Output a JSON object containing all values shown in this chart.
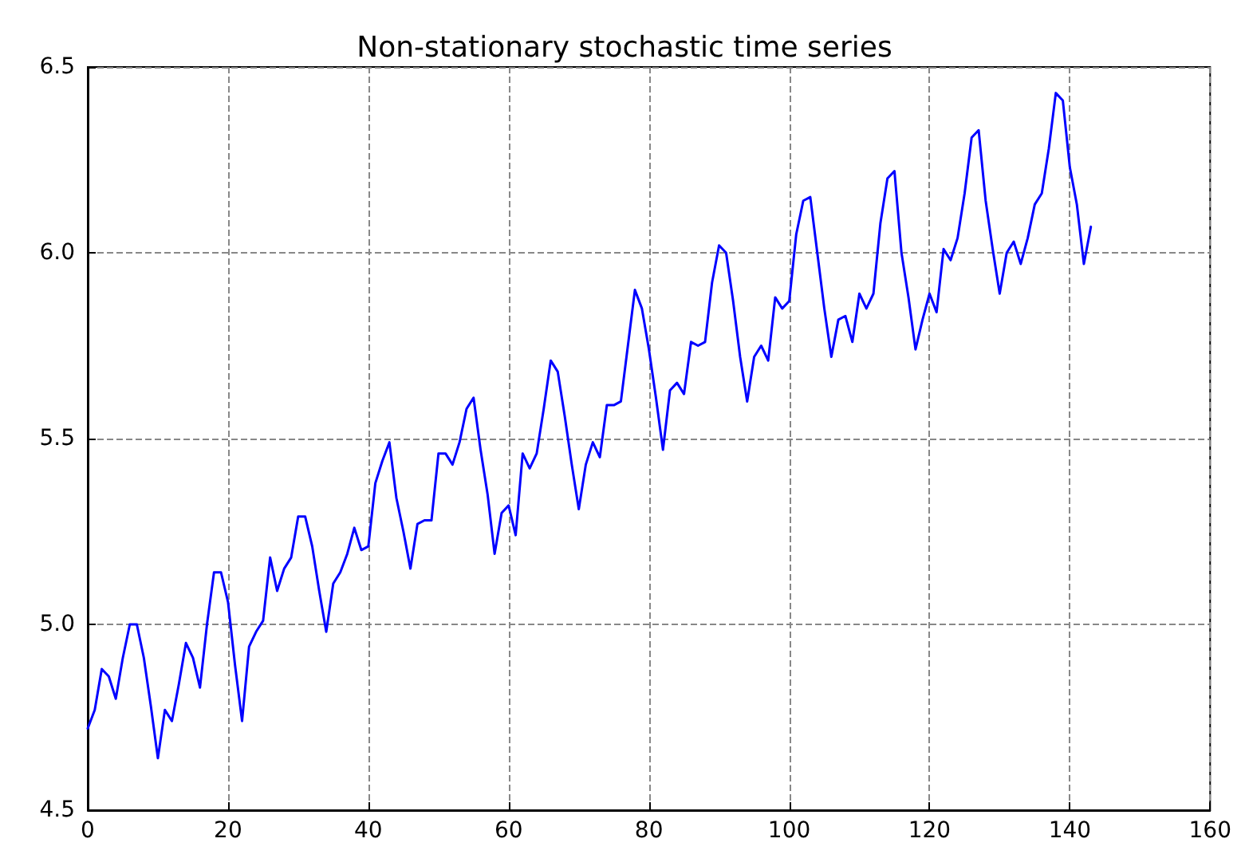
{
  "chart_data": {
    "type": "line",
    "title": "Non-stationary stochastic time series",
    "x": [
      0,
      1,
      2,
      3,
      4,
      5,
      6,
      7,
      8,
      9,
      10,
      11,
      12,
      13,
      14,
      15,
      16,
      17,
      18,
      19,
      20,
      21,
      22,
      23,
      24,
      25,
      26,
      27,
      28,
      29,
      30,
      31,
      32,
      33,
      34,
      35,
      36,
      37,
      38,
      39,
      40,
      41,
      42,
      43,
      44,
      45,
      46,
      47,
      48,
      49,
      50,
      51,
      52,
      53,
      54,
      55,
      56,
      57,
      58,
      59,
      60,
      61,
      62,
      63,
      64,
      65,
      66,
      67,
      68,
      69,
      70,
      71,
      72,
      73,
      74,
      75,
      76,
      77,
      78,
      79,
      80,
      81,
      82,
      83,
      84,
      85,
      86,
      87,
      88,
      89,
      90,
      91,
      92,
      93,
      94,
      95,
      96,
      97,
      98,
      99,
      100,
      101,
      102,
      103,
      104,
      105,
      106,
      107,
      108,
      109,
      110,
      111,
      112,
      113,
      114,
      115,
      116,
      117,
      118,
      119,
      120,
      121,
      122,
      123,
      124,
      125,
      126,
      127,
      128,
      129,
      130,
      131,
      132,
      133,
      134,
      135,
      136,
      137,
      138,
      139,
      140,
      141,
      142,
      143
    ],
    "series": [
      {
        "color": "#0000ff",
        "values": [
          4.72,
          4.77,
          4.88,
          4.86,
          4.8,
          4.91,
          5.0,
          5.0,
          4.91,
          4.78,
          4.64,
          4.77,
          4.74,
          4.84,
          4.95,
          4.91,
          4.83,
          5.0,
          5.14,
          5.14,
          5.06,
          4.89,
          4.74,
          4.94,
          4.98,
          5.01,
          5.18,
          5.09,
          5.15,
          5.18,
          5.29,
          5.29,
          5.21,
          5.09,
          4.98,
          5.11,
          5.14,
          5.19,
          5.26,
          5.2,
          5.21,
          5.38,
          5.44,
          5.49,
          5.34,
          5.25,
          5.15,
          5.27,
          5.28,
          5.28,
          5.46,
          5.46,
          5.43,
          5.49,
          5.58,
          5.61,
          5.47,
          5.35,
          5.19,
          5.3,
          5.32,
          5.24,
          5.46,
          5.42,
          5.46,
          5.58,
          5.71,
          5.68,
          5.56,
          5.43,
          5.31,
          5.43,
          5.49,
          5.45,
          5.59,
          5.59,
          5.6,
          5.75,
          5.9,
          5.85,
          5.74,
          5.61,
          5.47,
          5.63,
          5.65,
          5.62,
          5.76,
          5.75,
          5.76,
          5.92,
          6.02,
          6.0,
          5.87,
          5.72,
          5.6,
          5.72,
          5.75,
          5.71,
          5.88,
          5.85,
          5.87,
          6.05,
          6.14,
          6.15,
          6.0,
          5.85,
          5.72,
          5.82,
          5.83,
          5.76,
          5.89,
          5.85,
          5.89,
          6.08,
          6.2,
          6.22,
          6.0,
          5.88,
          5.74,
          5.82,
          5.89,
          5.84,
          6.01,
          5.98,
          6.04,
          6.16,
          6.31,
          6.33,
          6.14,
          6.01,
          5.89,
          6.0,
          6.03,
          5.97,
          6.04,
          6.13,
          6.16,
          6.28,
          6.43,
          6.41,
          6.23,
          6.13,
          5.97,
          6.07
        ]
      }
    ],
    "xlim": [
      0,
      160
    ],
    "xticks": [
      0,
      20,
      40,
      60,
      80,
      100,
      120,
      140,
      160
    ],
    "ylim": [
      4.5,
      6.5
    ],
    "yticks": [
      4.5,
      {
        "value": 5,
        "label": "5.0"
      },
      5.5,
      {
        "value": 6,
        "label": "6.0"
      },
      6.5
    ],
    "grid": true,
    "marker": "none",
    "line_style": "solid"
  }
}
